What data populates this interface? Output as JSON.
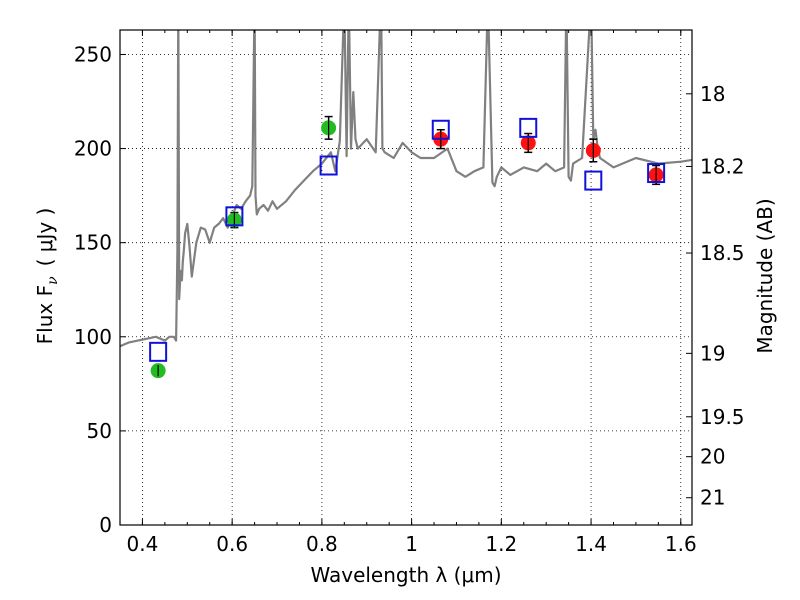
{
  "chart_data": {
    "type": "scatter",
    "xlabel": "Wavelength  λ (μm)",
    "ylabel": "Flux  F",
    "ylabel_sub": "ν",
    "ylabel_unit": "( μJy )",
    "ylabel_right": "Magnitude (AB)",
    "xlim": [
      0.35,
      1.625
    ],
    "ylim": [
      0,
      263
    ],
    "grid": true,
    "x_ticks": [
      0.4,
      0.6,
      0.8,
      1.0,
      1.2,
      1.4,
      1.6
    ],
    "x_tick_labels": [
      "0.4",
      "0.6",
      "0.8",
      "1",
      "1.2",
      "1.4",
      "1.6"
    ],
    "y_ticks": [
      0,
      50,
      100,
      150,
      200,
      250
    ],
    "y_tick_labels": [
      "0",
      "50",
      "100",
      "150",
      "200",
      "250"
    ],
    "right_ticks": [
      {
        "label": "18",
        "flux": 229.1
      },
      {
        "label": "18.2",
        "flux": 190.5
      },
      {
        "label": "18.5",
        "flux": 144.5
      },
      {
        "label": "19",
        "flux": 91.2
      },
      {
        "label": "19.5",
        "flux": 57.5
      },
      {
        "label": "20",
        "flux": 36.3
      },
      {
        "label": "21",
        "flux": 14.5
      }
    ],
    "series": [
      {
        "marker": "line",
        "color": "#808080",
        "x": [
          0.35,
          0.37,
          0.39,
          0.41,
          0.43,
          0.45,
          0.46,
          0.47,
          0.475,
          0.478,
          0.48,
          0.482,
          0.485,
          0.488,
          0.49,
          0.492,
          0.495,
          0.5,
          0.505,
          0.51,
          0.52,
          0.53,
          0.54,
          0.55,
          0.56,
          0.57,
          0.58,
          0.59,
          0.6,
          0.61,
          0.62,
          0.63,
          0.64,
          0.645,
          0.65,
          0.652,
          0.655,
          0.66,
          0.67,
          0.68,
          0.69,
          0.7,
          0.72,
          0.74,
          0.76,
          0.78,
          0.8,
          0.82,
          0.83,
          0.84,
          0.85,
          0.855,
          0.86,
          0.865,
          0.87,
          0.875,
          0.88,
          0.9,
          0.92,
          0.93,
          0.932,
          0.935,
          0.94,
          0.96,
          0.98,
          1.0,
          1.02,
          1.05,
          1.08,
          1.1,
          1.12,
          1.14,
          1.16,
          1.17,
          1.18,
          1.185,
          1.19,
          1.2,
          1.22,
          1.25,
          1.28,
          1.3,
          1.32,
          1.34,
          1.345,
          1.35,
          1.355,
          1.36,
          1.38,
          1.4,
          1.405,
          1.41,
          1.415,
          1.42,
          1.45,
          1.5,
          1.55,
          1.6,
          1.625
        ],
        "y": [
          95,
          97,
          98,
          99,
          100,
          98,
          100,
          100,
          98,
          145,
          280,
          120,
          135,
          130,
          140,
          145,
          155,
          160,
          148,
          132,
          150,
          158,
          157,
          150,
          158,
          160,
          163,
          158,
          164,
          170,
          168,
          172,
          175,
          180,
          280,
          175,
          165,
          168,
          170,
          167,
          172,
          168,
          172,
          178,
          183,
          188,
          192,
          198,
          188,
          204,
          280,
          196,
          280,
          200,
          230,
          205,
          200,
          205,
          198,
          270,
          280,
          200,
          198,
          195,
          203,
          198,
          195,
          195,
          200,
          188,
          185,
          188,
          190,
          280,
          182,
          180,
          185,
          190,
          186,
          190,
          188,
          192,
          188,
          190,
          280,
          185,
          183,
          192,
          195,
          280,
          205,
          210,
          200,
          195,
          190,
          195,
          192,
          193,
          194
        ],
        "line_x_extra": [
          0.4,
          0.44,
          0.82,
          0.97,
          1.06,
          1.16,
          1.26,
          1.43
        ],
        "line_y_extra": [
          97,
          99,
          192,
          195,
          193,
          190,
          188,
          196
        ]
      },
      {
        "marker": "circle",
        "color": "#22bb22",
        "x": [
          0.435,
          0.605,
          0.815
        ],
        "y": [
          82,
          162,
          211
        ],
        "yerr": [
          3,
          4,
          6
        ]
      },
      {
        "marker": "circle",
        "color": "#ff1111",
        "x": [
          1.065,
          1.26,
          1.405,
          1.545
        ],
        "y": [
          205,
          203,
          199,
          186
        ],
        "yerr": [
          5,
          5,
          6,
          5
        ]
      },
      {
        "marker": "square-open",
        "color": "#1111dd",
        "x": [
          0.435,
          0.605,
          0.815,
          1.065,
          1.26,
          1.405,
          1.545
        ],
        "y": [
          92,
          164,
          191,
          210,
          211,
          183,
          187
        ]
      }
    ]
  }
}
